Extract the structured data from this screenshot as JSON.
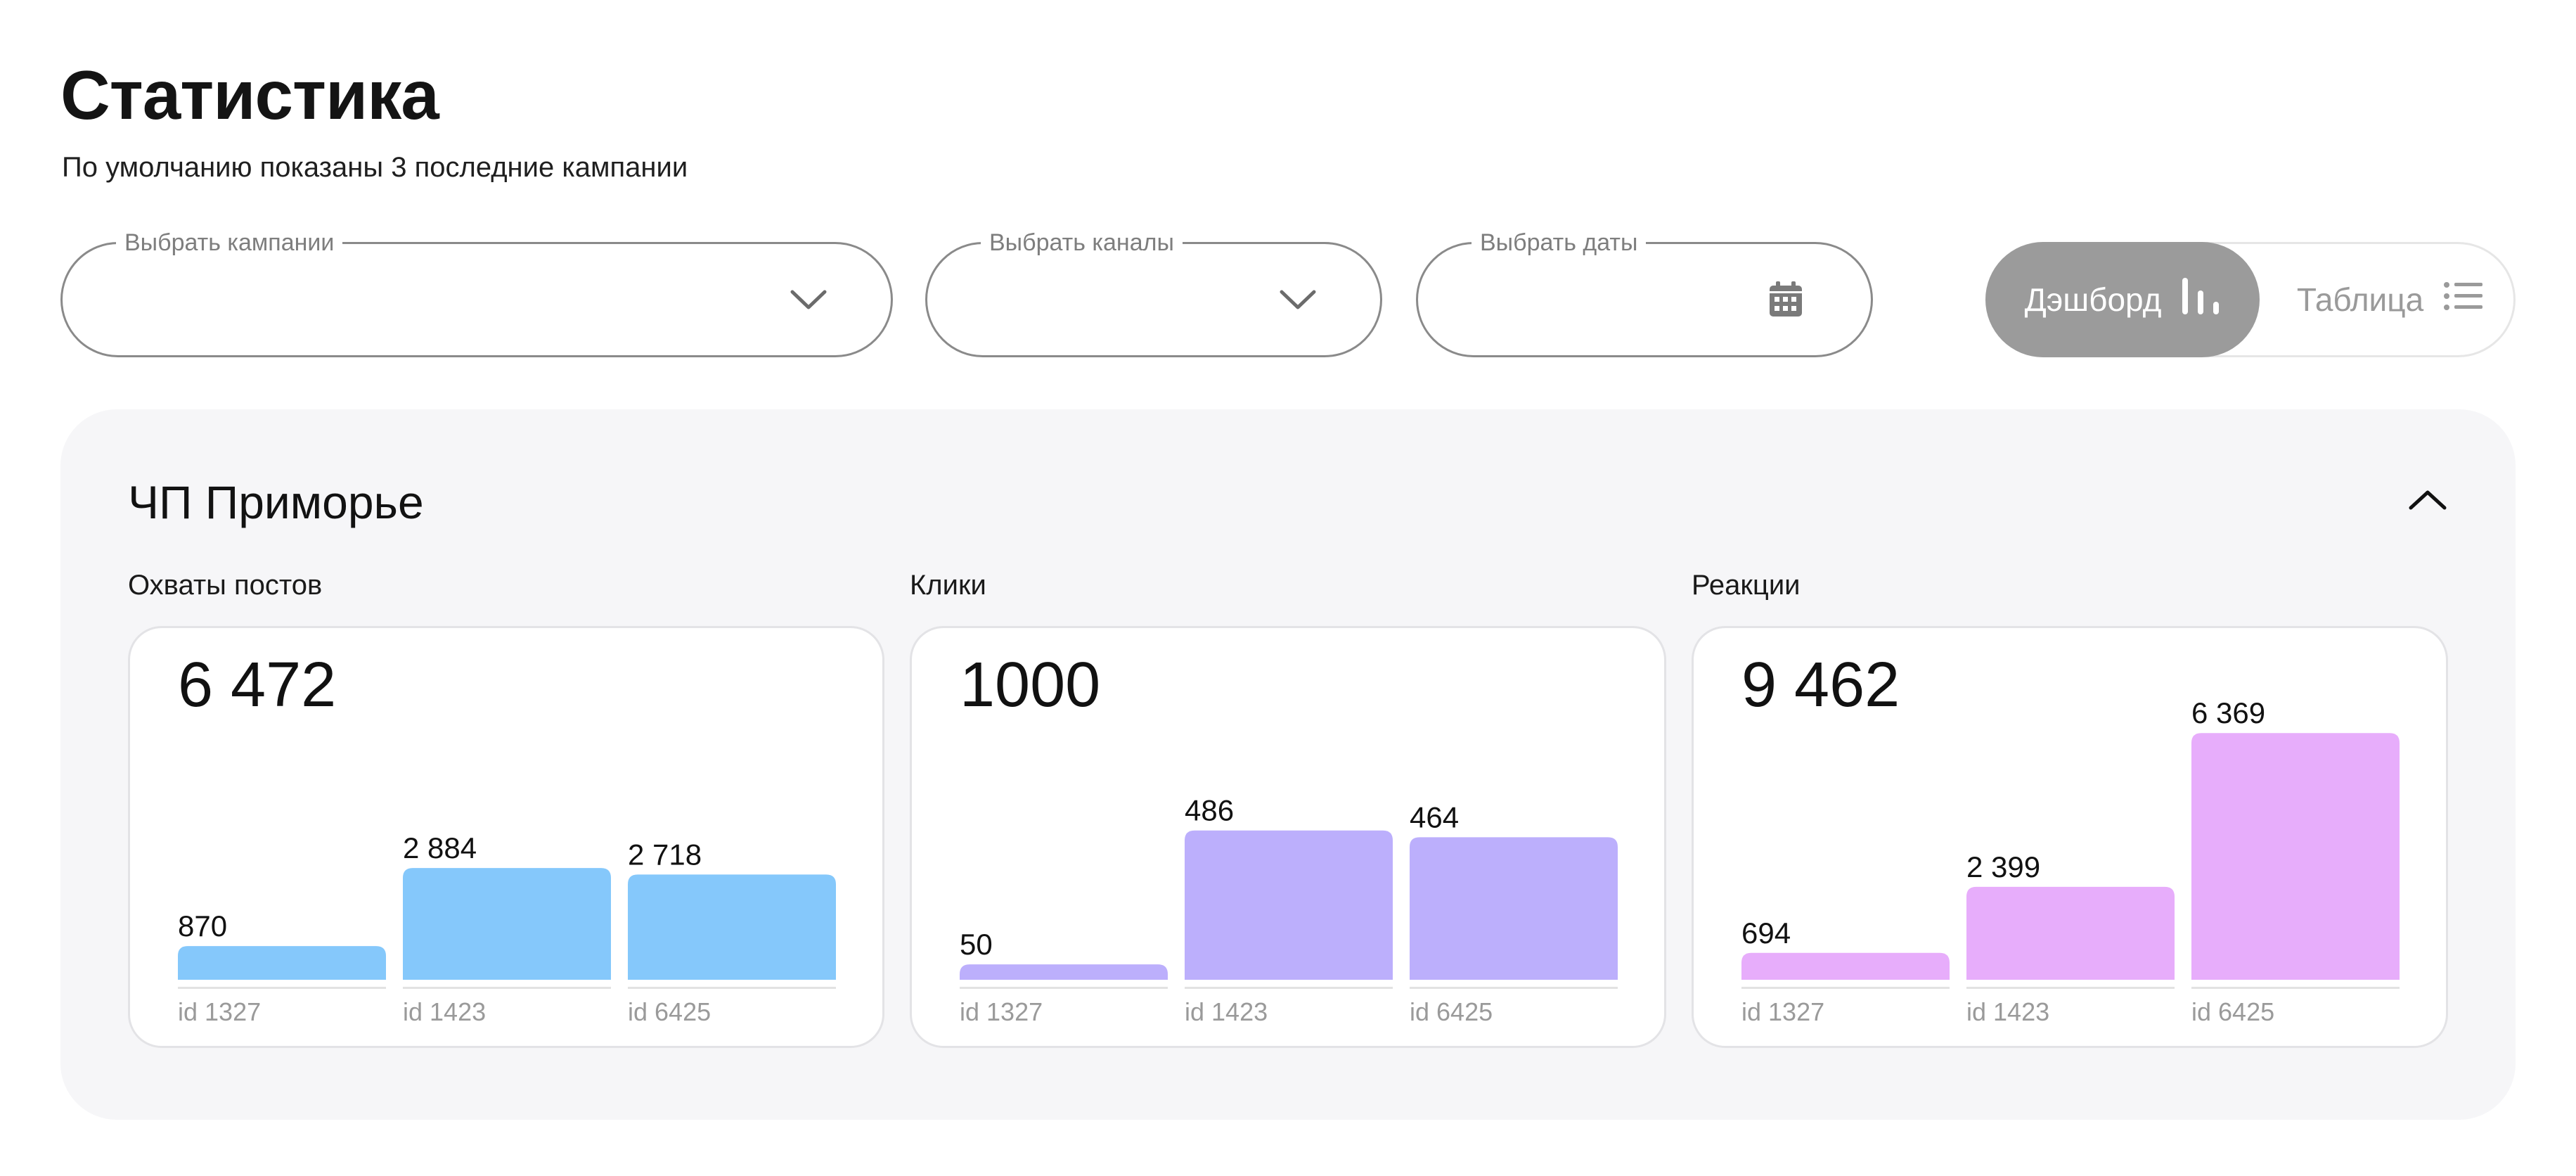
{
  "header": {
    "title": "Статистика",
    "subtitle": "По умолчанию показаны 3 последние кампании"
  },
  "filters": {
    "campaigns_label": "Выбрать кампании",
    "channels_label": "Выбрать каналы",
    "dates_label": "Выбрать даты"
  },
  "view_toggle": {
    "dashboard_label": "Дэшборд",
    "table_label": "Таблица",
    "active": "dashboard"
  },
  "colors": {
    "reach_bar": "#85c8fb",
    "clicks_bar": "#bcaffc",
    "reactions_bar": "#e7adfb",
    "toggle_active_bg": "#9b9b9b",
    "panel_bg": "#f6f6f8"
  },
  "campaign": {
    "title": "ЧП Приморье",
    "metrics": [
      {
        "label": "Охваты постов",
        "total": "6 472"
      },
      {
        "label": "Клики",
        "total": "1000"
      },
      {
        "label": "Реакции",
        "total": "9 462"
      }
    ]
  },
  "chart_data": [
    {
      "type": "bar",
      "categories": [
        "id 1327",
        "id 1423",
        "id 6425"
      ],
      "values": [
        870,
        2884,
        2718
      ],
      "value_labels": [
        "870",
        "2  884",
        "2 718"
      ],
      "ylim": [
        0,
        6900
      ]
    },
    {
      "type": "bar",
      "categories": [
        "id 1327",
        "id 1423",
        "id 6425"
      ],
      "values": [
        50,
        486,
        464
      ],
      "value_labels": [
        "50",
        "486",
        "464"
      ],
      "ylim": [
        0,
        870
      ]
    },
    {
      "type": "bar",
      "categories": [
        "id 1327",
        "id 1423",
        "id 6425"
      ],
      "values": [
        694,
        2399,
        6369
      ],
      "value_labels": [
        "694",
        "2 399",
        "6 369"
      ],
      "ylim": [
        0,
        6900
      ]
    }
  ]
}
